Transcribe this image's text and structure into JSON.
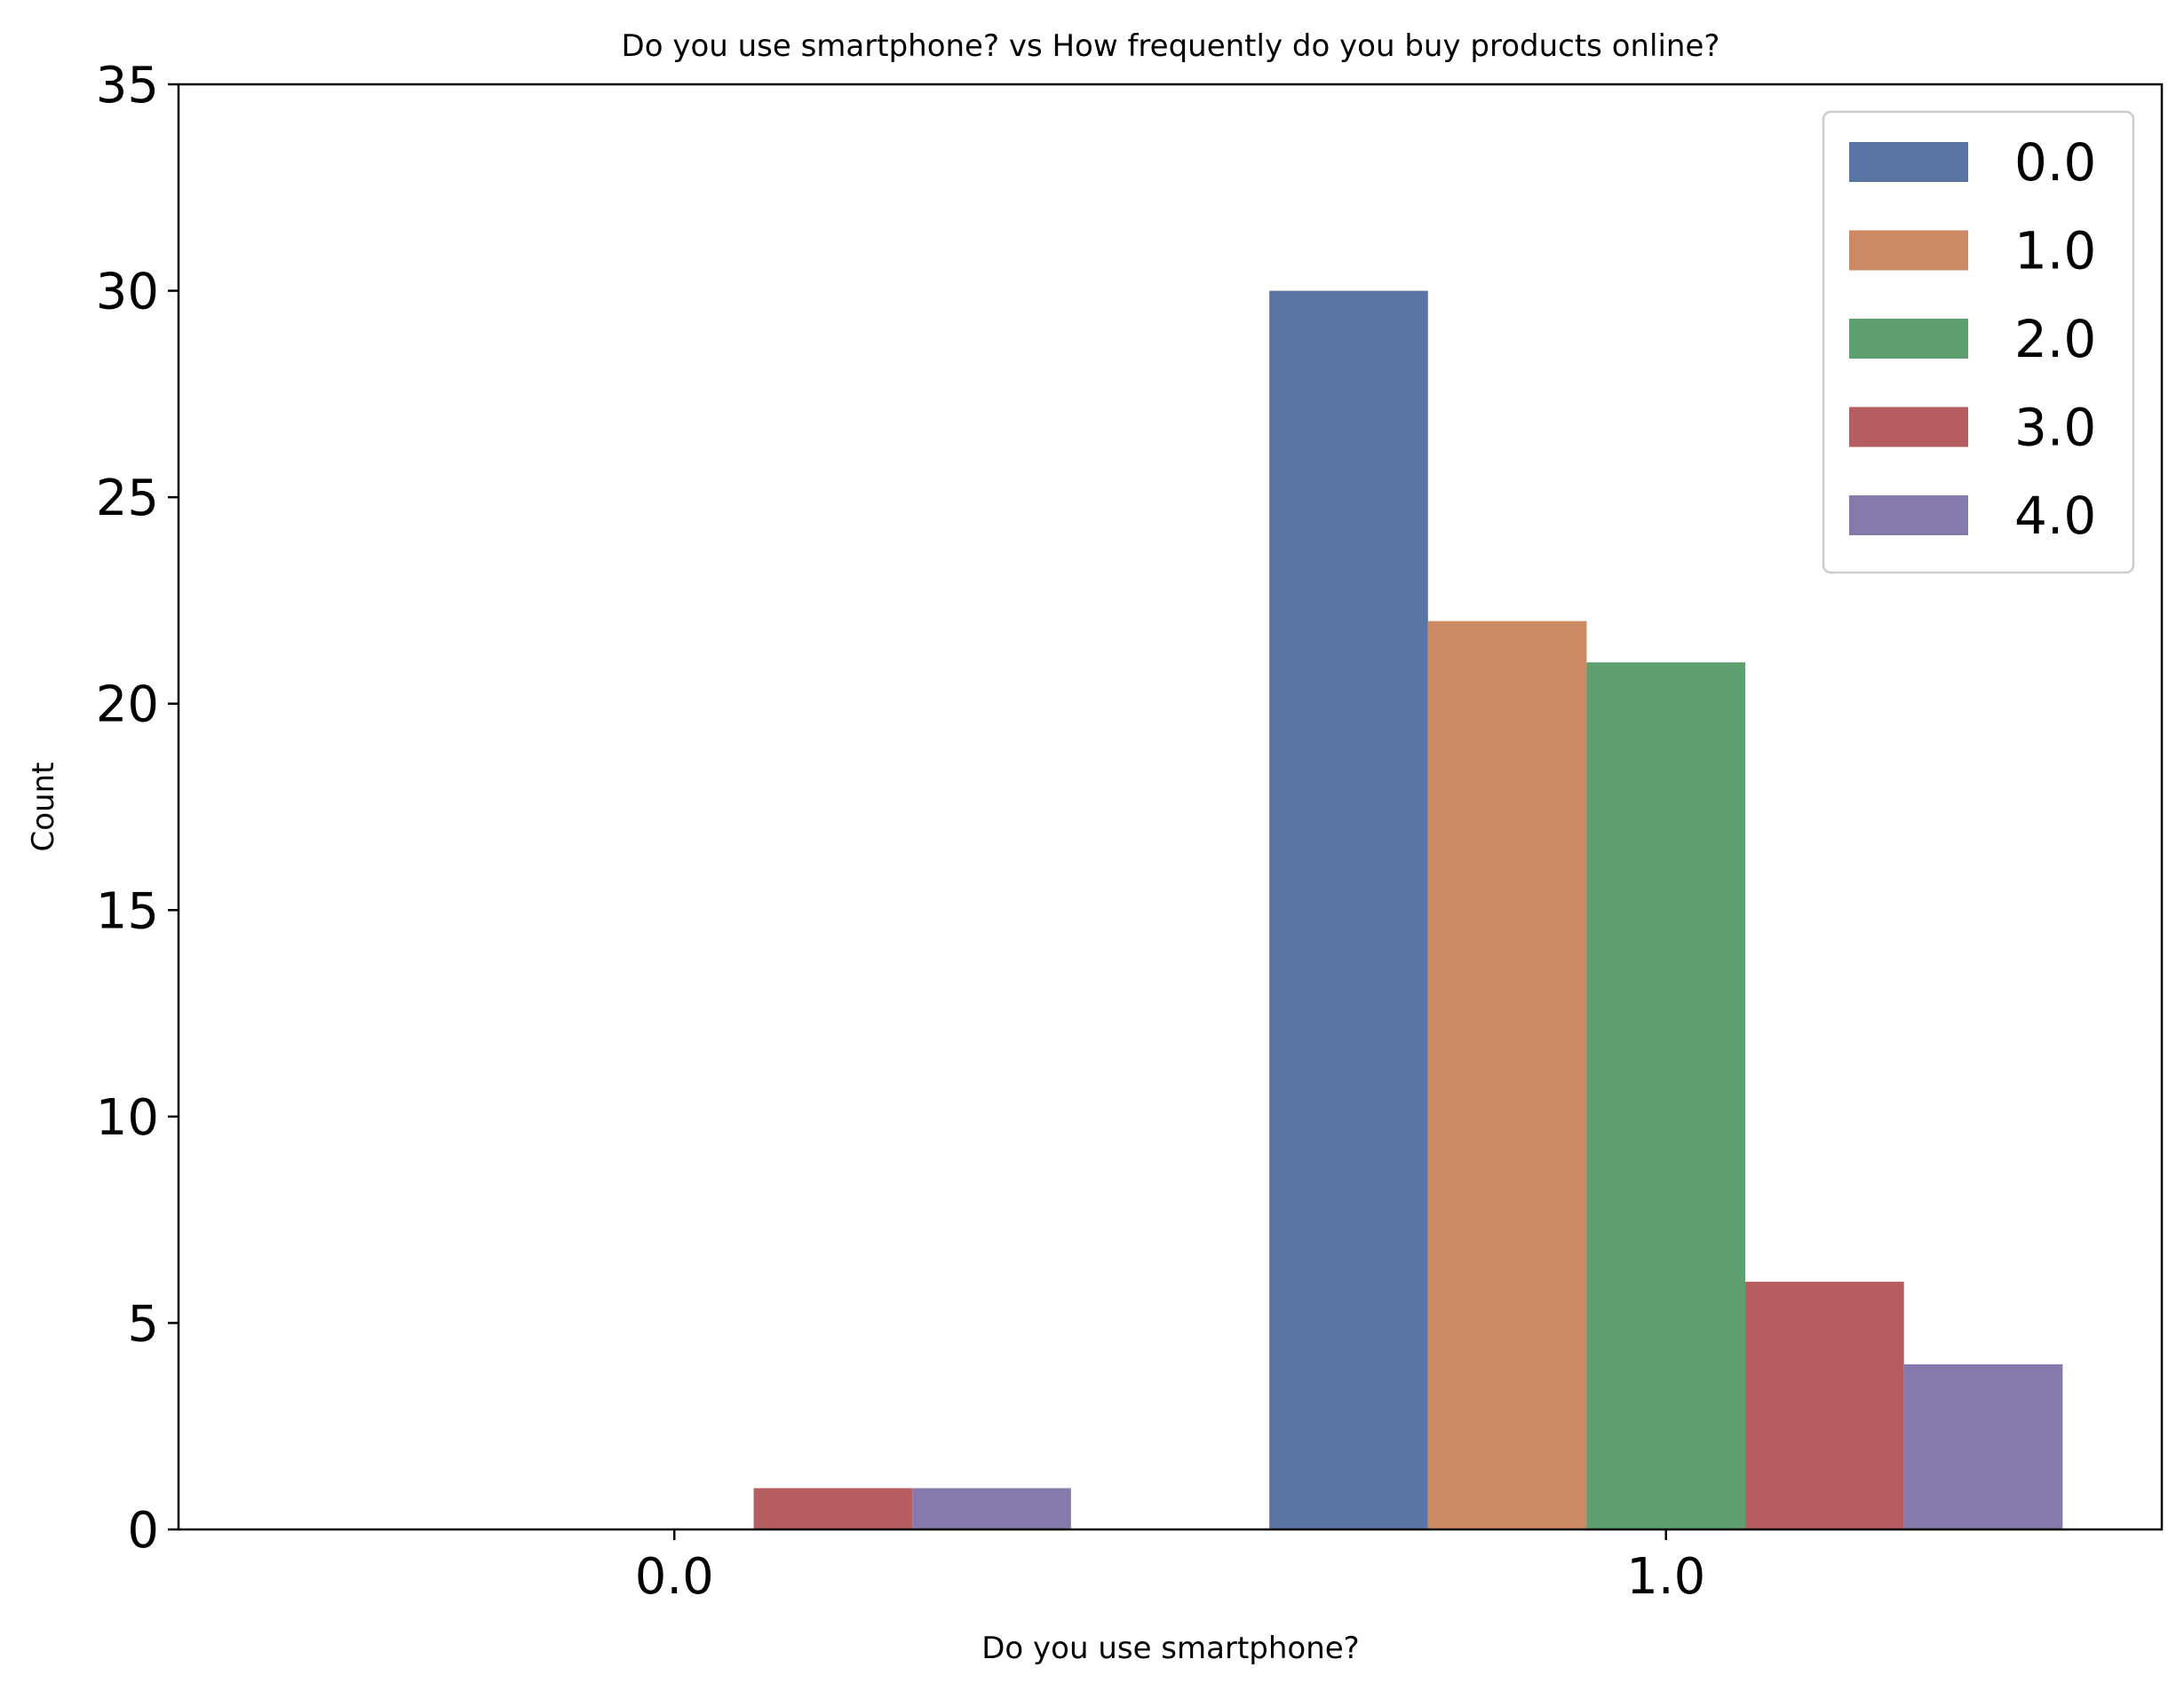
{
  "chart_data": {
    "type": "bar",
    "title": "Do you use smartphone? vs How frequently do you buy products online?",
    "xlabel": "Do you use smartphone?",
    "ylabel": "Count",
    "categories": [
      "0.0",
      "1.0"
    ],
    "series": [
      {
        "name": "0.0",
        "color": "#5975a4",
        "values": [
          0,
          30
        ]
      },
      {
        "name": "1.0",
        "color": "#cc8963",
        "values": [
          0,
          22
        ]
      },
      {
        "name": "2.0",
        "color": "#5f9e6e",
        "values": [
          0,
          21
        ]
      },
      {
        "name": "3.0",
        "color": "#b55d60",
        "values": [
          1,
          6
        ]
      },
      {
        "name": "4.0",
        "color": "#857aab",
        "values": [
          1,
          4
        ]
      }
    ],
    "ylim": [
      0,
      35
    ],
    "yticks": [
      "0",
      "5",
      "10",
      "15",
      "20",
      "25",
      "30",
      "35"
    ],
    "grid": false,
    "legend_position": "top-right"
  }
}
